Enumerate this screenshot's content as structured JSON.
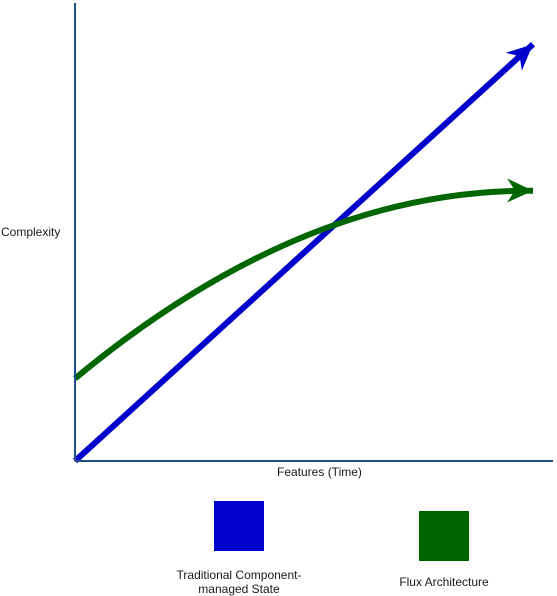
{
  "chart_data": {
    "type": "line",
    "title": "",
    "xlabel": "Features (Time)",
    "ylabel": "Complexity",
    "xlim": [
      0,
      1
    ],
    "ylim": [
      0,
      1
    ],
    "grid": false,
    "legend_position": "bottom",
    "series": [
      {
        "name": "Traditional Component-managed State",
        "color": "#0000cc",
        "curve": "linear",
        "arrow_end": true,
        "x": [
          0,
          1
        ],
        "y": [
          0,
          0.91
        ]
      },
      {
        "name": "Flux Architecture",
        "color": "#006600",
        "curve": "smooth",
        "arrow_end": true,
        "x": [
          0,
          0.5,
          1
        ],
        "y": [
          0.18,
          0.49,
          0.59
        ]
      }
    ],
    "axis_color": "#1f4e8c"
  }
}
